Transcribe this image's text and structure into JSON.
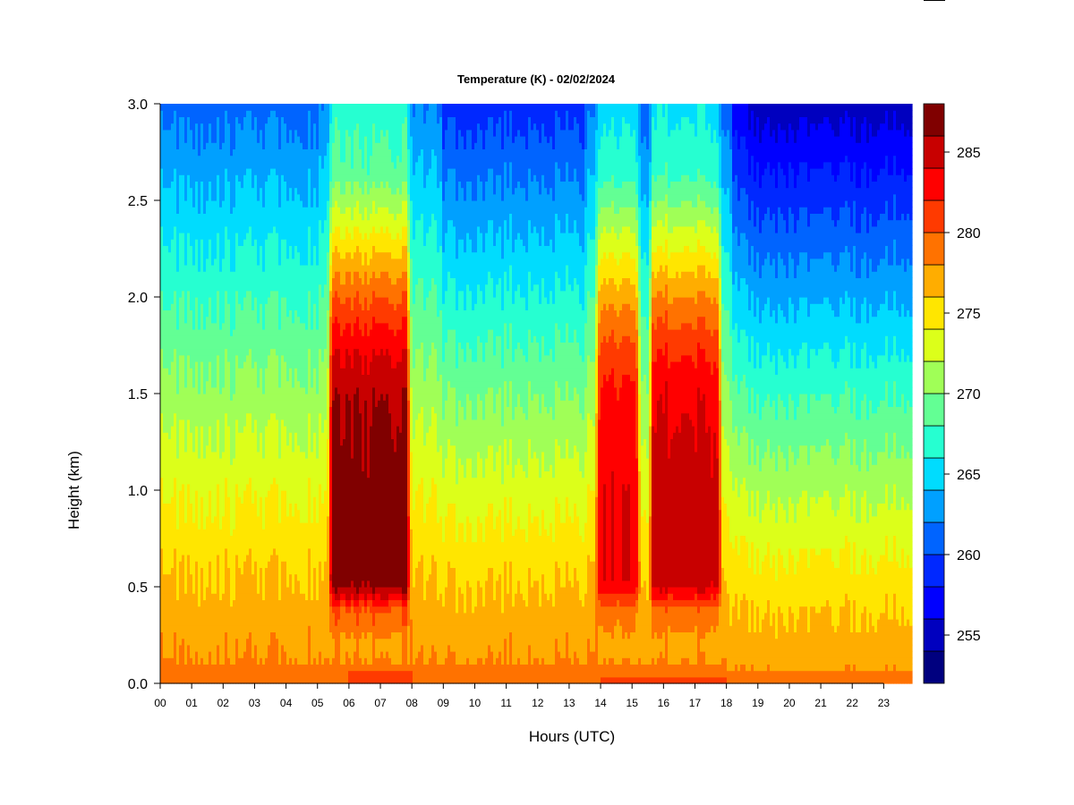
{
  "chart_data": {
    "type": "heatmap",
    "title": "Temperature (K) - 02/02/2024",
    "xlabel": "Hours (UTC)",
    "ylabel": "Height (km)",
    "xlim": [
      0,
      23.9
    ],
    "ylim": [
      0,
      3.0
    ],
    "x_ticks": [
      "00",
      "01",
      "02",
      "03",
      "04",
      "05",
      "06",
      "07",
      "08",
      "09",
      "10",
      "11",
      "12",
      "13",
      "14",
      "15",
      "16",
      "17",
      "18",
      "19",
      "20",
      "21",
      "22",
      "23"
    ],
    "y_ticks": [
      "0.0",
      "0.5",
      "1.0",
      "1.5",
      "2.0",
      "2.5",
      "3.0"
    ],
    "colorbar": {
      "min": 252,
      "max": 288,
      "step": 2,
      "ticks": [
        "255",
        "260",
        "265",
        "270",
        "275",
        "280",
        "285"
      ],
      "colors": [
        "#00007f",
        "#0000bf",
        "#0000ff",
        "#0028ff",
        "#0064ff",
        "#00a0ff",
        "#00dcfe",
        "#26ffd1",
        "#63ff94",
        "#a0ff57",
        "#dcff1a",
        "#ffe600",
        "#ffad00",
        "#ff7200",
        "#ff3a00",
        "#ff0000",
        "#c80000",
        "#800000"
      ]
    },
    "grid": false,
    "surface_temperature_K": [
      280,
      280,
      280,
      280,
      280,
      280,
      282,
      282,
      280,
      280,
      280,
      280,
      280,
      280,
      281,
      281,
      281,
      281,
      279,
      279,
      279,
      279,
      279,
      279
    ],
    "warm_plumes": [
      {
        "start_hour": 5.3,
        "end_hour": 8.0,
        "peak_K": 287
      },
      {
        "start_hour": 13.8,
        "end_hour": 15.3,
        "peak_K": 284
      },
      {
        "start_hour": 15.5,
        "end_hour": 17.9,
        "peak_K": 285
      }
    ],
    "temperature_at_3km_K": {
      "00-05": 261,
      "09-13": 259,
      "19-24": 255
    }
  }
}
